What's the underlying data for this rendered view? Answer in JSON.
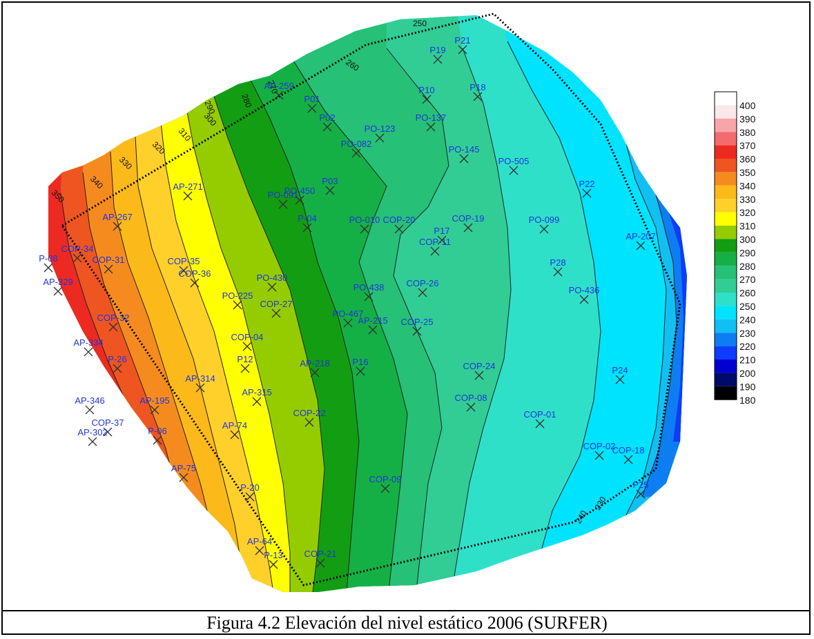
{
  "caption": "Figura 4.2 Elevación del nivel estático 2006 (SURFER)",
  "legend": {
    "levels": [
      400,
      390,
      380,
      370,
      360,
      350,
      340,
      330,
      320,
      310,
      300,
      290,
      280,
      270,
      260,
      250,
      240,
      230,
      220,
      210,
      200,
      190,
      180
    ],
    "colors": [
      "#ffffff",
      "#fbe9ea",
      "#f8a5a8",
      "#f36b6d",
      "#ec2a22",
      "#ee5521",
      "#f58b1f",
      "#fcb91a",
      "#ffd02a",
      "#ffff00",
      "#94cc00",
      "#139d13",
      "#15b045",
      "#26c076",
      "#31cd95",
      "#2fe0c9",
      "#00e3ff",
      "#12bff3",
      "#0c7ef2",
      "#0d3cfa",
      "#0000d0",
      "#000a6a",
      "#000000"
    ]
  },
  "contour_labels": [
    "250",
    "260",
    "270",
    "280",
    "290",
    "300",
    "310",
    "320",
    "330",
    "340",
    "350",
    "230",
    "240"
  ],
  "wells": [
    {
      "name": "P21"
    },
    {
      "name": "P19"
    },
    {
      "name": "P10"
    },
    {
      "name": "P18"
    },
    {
      "name": "AP-259"
    },
    {
      "name": "P01"
    },
    {
      "name": "P02"
    },
    {
      "name": "PO-137"
    },
    {
      "name": "PO-123"
    },
    {
      "name": "PO-082"
    },
    {
      "name": "PO-145"
    },
    {
      "name": "PO-505"
    },
    {
      "name": "P22"
    },
    {
      "name": "AP-271"
    },
    {
      "name": "P03"
    },
    {
      "name": "PO-450"
    },
    {
      "name": "PO-091"
    },
    {
      "name": "AP-267"
    },
    {
      "name": "P-04"
    },
    {
      "name": "PO-010"
    },
    {
      "name": "COP-20"
    },
    {
      "name": "COP-19"
    },
    {
      "name": "P17"
    },
    {
      "name": "COP-11"
    },
    {
      "name": "PO-099"
    },
    {
      "name": "AP-207"
    },
    {
      "name": "P-08"
    },
    {
      "name": "COP-34"
    },
    {
      "name": "COP-31"
    },
    {
      "name": "COP-35"
    },
    {
      "name": "COP-36"
    },
    {
      "name": "P28"
    },
    {
      "name": "AP-329"
    },
    {
      "name": "PO-430"
    },
    {
      "name": "PO-438"
    },
    {
      "name": "COP-26"
    },
    {
      "name": "PO-436"
    },
    {
      "name": "PO-225"
    },
    {
      "name": "COP-27"
    },
    {
      "name": "COP-32"
    },
    {
      "name": "PO-467"
    },
    {
      "name": "AP-215"
    },
    {
      "name": "COP-25"
    },
    {
      "name": "COP-04"
    },
    {
      "name": "AP-334"
    },
    {
      "name": "P-26"
    },
    {
      "name": "P12"
    },
    {
      "name": "AP-218"
    },
    {
      "name": "P16"
    },
    {
      "name": "COP-24"
    },
    {
      "name": "P24"
    },
    {
      "name": "AP-314"
    },
    {
      "name": "AP-315"
    },
    {
      "name": "COP-08"
    },
    {
      "name": "AP-346"
    },
    {
      "name": "AP-195"
    },
    {
      "name": "COP-22"
    },
    {
      "name": "COP-01"
    },
    {
      "name": "COP-37"
    },
    {
      "name": "AP-302"
    },
    {
      "name": "P-06"
    },
    {
      "name": "AP-74"
    },
    {
      "name": "COP-02"
    },
    {
      "name": "COP-18"
    },
    {
      "name": "AP-75"
    },
    {
      "name": "P25"
    },
    {
      "name": "COP-09"
    },
    {
      "name": "P-20"
    },
    {
      "name": "AP-64"
    },
    {
      "name": "P-13"
    },
    {
      "name": "COP-21"
    }
  ]
}
